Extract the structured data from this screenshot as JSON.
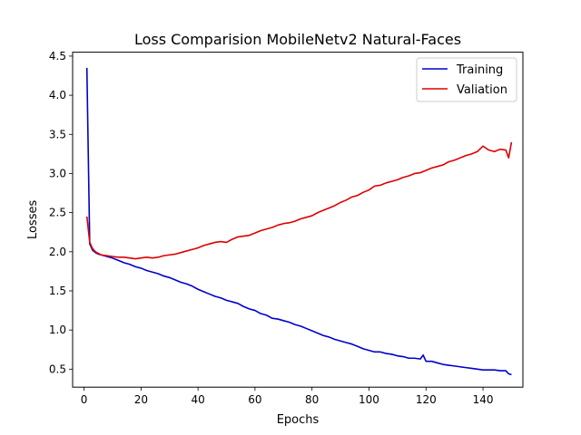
{
  "chart_data": {
    "type": "line",
    "title": "Loss Comparision MobileNetv2 Natural-Faces",
    "xlabel": "Epochs",
    "ylabel": "Losses",
    "xlim": [
      -4,
      154
    ],
    "ylim": [
      0.27,
      4.55
    ],
    "xticks": [
      0,
      20,
      40,
      60,
      80,
      100,
      120,
      140
    ],
    "yticks": [
      0.5,
      1.0,
      1.5,
      2.0,
      2.5,
      3.0,
      3.5,
      4.0,
      4.5
    ],
    "xtick_labels": [
      "0",
      "20",
      "40",
      "60",
      "80",
      "100",
      "120",
      "140"
    ],
    "ytick_labels": [
      "0.5",
      "1.0",
      "1.5",
      "2.0",
      "2.5",
      "3.0",
      "3.5",
      "4.0",
      "4.5"
    ],
    "grid": false,
    "legend_position": "top-right",
    "series": [
      {
        "name": "Training",
        "color": "#0000cc",
        "x": [
          1,
          2,
          3,
          4,
          5,
          6,
          8,
          10,
          12,
          14,
          16,
          18,
          20,
          22,
          24,
          26,
          28,
          30,
          32,
          34,
          36,
          38,
          40,
          42,
          44,
          46,
          48,
          50,
          52,
          54,
          56,
          58,
          60,
          62,
          64,
          66,
          68,
          70,
          72,
          74,
          76,
          78,
          80,
          82,
          84,
          86,
          88,
          90,
          92,
          94,
          96,
          98,
          100,
          102,
          104,
          106,
          108,
          110,
          112,
          114,
          116,
          118,
          119,
          120,
          122,
          124,
          126,
          128,
          130,
          132,
          134,
          136,
          138,
          140,
          142,
          144,
          146,
          148,
          149,
          150
        ],
        "y": [
          4.35,
          2.1,
          2.02,
          1.99,
          1.97,
          1.96,
          1.94,
          1.92,
          1.89,
          1.86,
          1.84,
          1.81,
          1.79,
          1.76,
          1.74,
          1.72,
          1.69,
          1.67,
          1.64,
          1.61,
          1.59,
          1.56,
          1.52,
          1.49,
          1.46,
          1.43,
          1.41,
          1.38,
          1.36,
          1.34,
          1.3,
          1.27,
          1.25,
          1.21,
          1.19,
          1.15,
          1.14,
          1.12,
          1.1,
          1.07,
          1.05,
          1.02,
          0.99,
          0.96,
          0.93,
          0.91,
          0.88,
          0.86,
          0.84,
          0.82,
          0.79,
          0.76,
          0.74,
          0.72,
          0.72,
          0.7,
          0.69,
          0.67,
          0.66,
          0.64,
          0.64,
          0.63,
          0.68,
          0.6,
          0.6,
          0.58,
          0.56,
          0.55,
          0.54,
          0.53,
          0.52,
          0.51,
          0.5,
          0.49,
          0.49,
          0.49,
          0.48,
          0.48,
          0.44,
          0.43
        ]
      },
      {
        "name": "Valiation",
        "color": "#dd0000",
        "x": [
          1,
          2,
          3,
          4,
          5,
          6,
          8,
          10,
          12,
          14,
          16,
          18,
          20,
          22,
          24,
          26,
          28,
          30,
          32,
          34,
          36,
          38,
          40,
          42,
          44,
          46,
          48,
          50,
          52,
          54,
          56,
          58,
          60,
          62,
          64,
          66,
          68,
          70,
          72,
          74,
          76,
          78,
          80,
          82,
          84,
          86,
          88,
          90,
          92,
          94,
          96,
          98,
          100,
          102,
          104,
          106,
          108,
          110,
          112,
          114,
          116,
          118,
          120,
          122,
          124,
          126,
          128,
          130,
          132,
          134,
          136,
          138,
          140,
          142,
          144,
          146,
          148,
          149,
          150
        ],
        "y": [
          2.45,
          2.12,
          2.04,
          2.0,
          1.98,
          1.96,
          1.95,
          1.94,
          1.93,
          1.93,
          1.92,
          1.91,
          1.92,
          1.93,
          1.92,
          1.93,
          1.95,
          1.96,
          1.97,
          1.99,
          2.01,
          2.03,
          2.05,
          2.08,
          2.1,
          2.12,
          2.13,
          2.12,
          2.16,
          2.19,
          2.2,
          2.21,
          2.24,
          2.27,
          2.29,
          2.31,
          2.34,
          2.36,
          2.37,
          2.39,
          2.42,
          2.44,
          2.46,
          2.5,
          2.53,
          2.56,
          2.59,
          2.63,
          2.66,
          2.7,
          2.72,
          2.76,
          2.79,
          2.84,
          2.85,
          2.88,
          2.9,
          2.92,
          2.95,
          2.97,
          3.0,
          3.01,
          3.04,
          3.07,
          3.09,
          3.11,
          3.15,
          3.17,
          3.2,
          3.23,
          3.25,
          3.28,
          3.35,
          3.3,
          3.28,
          3.31,
          3.3,
          3.2,
          3.4
        ]
      }
    ]
  }
}
